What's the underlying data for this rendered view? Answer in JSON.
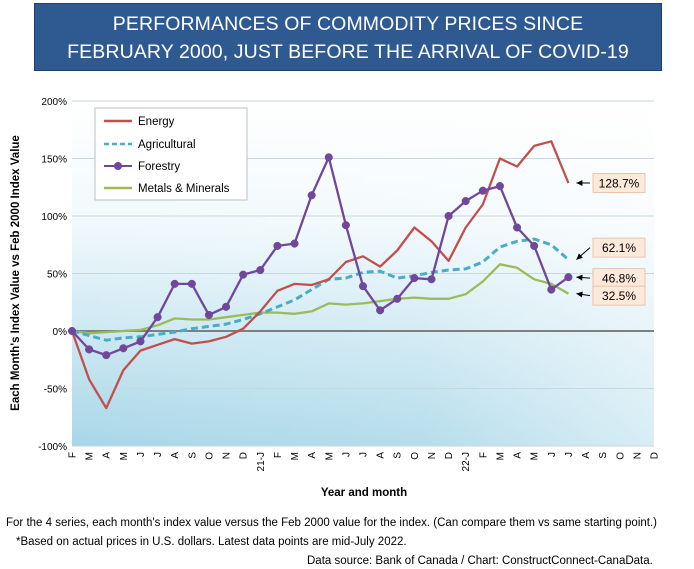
{
  "title": {
    "line1": "PERFORMANCES OF COMMODITY PRICES SINCE",
    "line2": "FEBRUARY 2000, JUST BEFORE THE ARRIVAL OF COVID-19"
  },
  "footnotes": {
    "line1": "For the 4 series, each month's index value versus the Feb 2000 value for the index. (Can compare them vs same starting point.)",
    "line2": "*Based on actual prices in U.S. dollars. Latest data points are mid-July 2022.",
    "line3": "Data source: Bank of Canada / Chart: ConstructConnect-CanaData."
  },
  "colors": {
    "energy": "#c0504d",
    "agricultural": "#4bacc6",
    "forestry": "#70479a",
    "metals": "#9bbb59",
    "title_bg": "#2f5a91"
  },
  "chart_data": {
    "type": "line",
    "xlabel": "Year and month",
    "ylabel": "Each Month's Index Value vs Feb 2000 Index Value",
    "ylim": [
      -100,
      200
    ],
    "yticks": [
      -100,
      -50,
      0,
      50,
      100,
      150,
      200
    ],
    "ytick_labels": [
      "-100%",
      "-50%",
      "0%",
      "50%",
      "100%",
      "150%",
      "200%"
    ],
    "x_tick_labels": [
      "F",
      "M",
      "A",
      "M",
      "J",
      "J",
      "A",
      "S",
      "O",
      "N",
      "D",
      "21-J",
      "F",
      "M",
      "A",
      "M",
      "J",
      "J",
      "A",
      "S",
      "O",
      "N",
      "D",
      "22-J",
      "F",
      "M",
      "A",
      "M",
      "J",
      "J",
      "A",
      "S",
      "O",
      "N",
      "D"
    ],
    "grid": "horizontal",
    "legend_position": "top-left",
    "series": [
      {
        "name": "Energy",
        "color_key": "energy",
        "style": "solid",
        "values": [
          0,
          -42,
          -67,
          -34,
          -17,
          -12,
          -7,
          -11,
          -9,
          -5,
          2,
          17,
          35,
          41,
          40,
          45,
          60,
          65,
          56,
          70,
          90,
          78,
          61,
          90,
          110,
          150,
          143,
          161,
          165,
          128.7
        ],
        "end_label": "128.7%"
      },
      {
        "name": "Agricultural",
        "color_key": "agricultural",
        "style": "dashed",
        "values": [
          0,
          -4,
          -8,
          -6,
          -5,
          -3,
          -1,
          2,
          4,
          6,
          10,
          15,
          21,
          27,
          36,
          45,
          46,
          51,
          52,
          46,
          48,
          51,
          53,
          54,
          60,
          73,
          78,
          80,
          75,
          62.1
        ],
        "end_label": "62.1%"
      },
      {
        "name": "Forestry",
        "color_key": "forestry",
        "style": "solid-markers",
        "values": [
          0,
          -16,
          -21,
          -15,
          -9,
          12,
          41,
          41,
          14,
          21,
          49,
          53,
          74,
          76,
          118,
          151,
          92,
          39,
          18,
          28,
          46,
          45,
          100,
          113,
          122,
          126,
          90,
          74,
          36,
          46.8
        ],
        "end_label": "46.8%"
      },
      {
        "name": "Metals & Minerals",
        "color_key": "metals",
        "style": "solid",
        "values": [
          0,
          -2,
          -1,
          0,
          1,
          5,
          11,
          10,
          10,
          12,
          14,
          16,
          16,
          15,
          17,
          24,
          23,
          24,
          26,
          28,
          29,
          28,
          28,
          32,
          43,
          58,
          55,
          45,
          41,
          32.5
        ],
        "end_label": "32.5%"
      }
    ]
  }
}
